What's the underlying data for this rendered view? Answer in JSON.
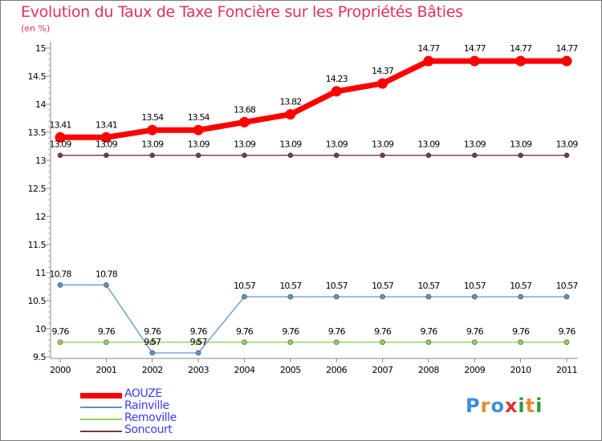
{
  "title": "Evolution du Taux de Taxe Foncière sur les Propriétés Bâties",
  "unit_label": "(en %)",
  "logo": {
    "text": "Proxiti",
    "letters": [
      {
        "ch": "P",
        "color": "#3d8fd6"
      },
      {
        "ch": "r",
        "color": "#e98b2a"
      },
      {
        "ch": "o",
        "color": "#3d8fd6"
      },
      {
        "ch": "x",
        "color": "#e2312f"
      },
      {
        "ch": "i",
        "color": "#2f9a3a"
      },
      {
        "ch": "t",
        "color": "#e98b2a"
      },
      {
        "ch": "i",
        "color": "#2f9a3a"
      }
    ]
  },
  "chart_data": {
    "type": "line",
    "title": "Evolution du Taux de Taxe Foncière sur les Propriétés Bâties",
    "ylabel": "(en %)",
    "xlabel": "",
    "x": [
      "2000",
      "2001",
      "2002",
      "2003",
      "2004",
      "2005",
      "2006",
      "2007",
      "2008",
      "2009",
      "2010",
      "2011"
    ],
    "ylim": [
      9.5,
      15
    ],
    "yticks": [
      "9.5",
      "10",
      "10.5",
      "11",
      "11.5",
      "12",
      "12.5",
      "13",
      "13.5",
      "14",
      "14.5",
      "15"
    ],
    "legend_position": "bottom-left",
    "series": [
      {
        "name": "AOUZE",
        "color": "#ff0000",
        "values": [
          13.41,
          13.41,
          13.54,
          13.54,
          13.68,
          13.82,
          14.23,
          14.37,
          14.77,
          14.77,
          14.77,
          14.77
        ],
        "labels": [
          "13.41",
          "13.41",
          "13.54",
          "13.54",
          "13.68",
          "13.82",
          "14.23",
          "14.37",
          "14.77",
          "14.77",
          "14.77",
          "14.77"
        ]
      },
      {
        "name": "Rainville",
        "color": "#5b95c5",
        "values": [
          10.78,
          10.78,
          9.57,
          9.57,
          10.57,
          10.57,
          10.57,
          10.57,
          10.57,
          10.57,
          10.57,
          10.57
        ],
        "labels": [
          "10.78",
          "10.78",
          "9.57",
          "9.57",
          "10.57",
          "10.57",
          "10.57",
          "10.57",
          "10.57",
          "10.57",
          "10.57",
          "10.57"
        ]
      },
      {
        "name": "Removille",
        "color": "#8fd455",
        "values": [
          9.76,
          9.76,
          9.76,
          9.76,
          9.76,
          9.76,
          9.76,
          9.76,
          9.76,
          9.76,
          9.76,
          9.76
        ],
        "labels": [
          "9.76",
          "9.76",
          "9.76",
          "9.76",
          "9.76",
          "9.76",
          "9.76",
          "9.76",
          "9.76",
          "9.76",
          "9.76",
          "9.76"
        ]
      },
      {
        "name": "Soncourt",
        "color": "#7a3a3a",
        "values": [
          13.09,
          13.09,
          13.09,
          13.09,
          13.09,
          13.09,
          13.09,
          13.09,
          13.09,
          13.09,
          13.09,
          13.09
        ],
        "labels": [
          "13.09",
          "13.09",
          "13.09",
          "13.09",
          "13.09",
          "13.09",
          "13.09",
          "13.09",
          "13.09",
          "13.09",
          "13.09",
          "13.09"
        ]
      }
    ]
  }
}
